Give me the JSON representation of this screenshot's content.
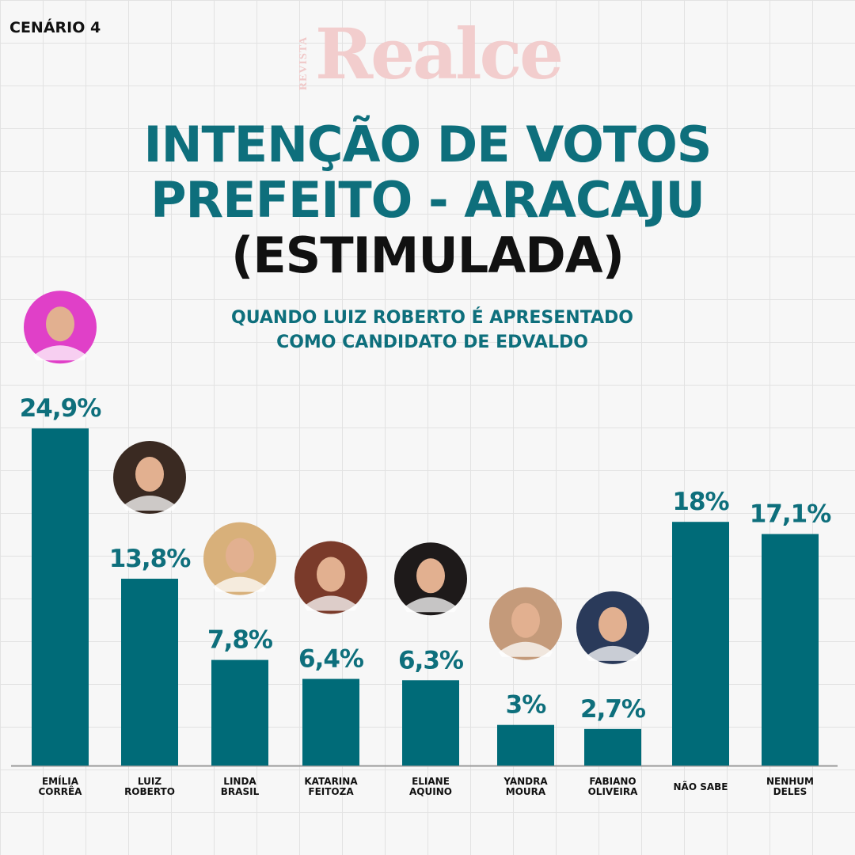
{
  "scenario_label": "CENÁRIO 4",
  "brand": {
    "sub": "REVISTA",
    "name": "Realce"
  },
  "title": {
    "line1": "INTENÇÃO DE VOTOS",
    "line2": "PREFEITO - ARACAJU",
    "line3": "(ESTIMULADA)"
  },
  "subtitle": {
    "line1": "QUANDO LUIZ ROBERTO É APRESENTADO",
    "line2": "COMO CANDIDATO DE EDVALDO"
  },
  "colors": {
    "bar": "#006b78",
    "accent": "#0e6f7c",
    "axis": "#999999"
  },
  "chart_data": {
    "type": "bar",
    "title": "INTENÇÃO DE VOTOS PREFEITO - ARACAJU (ESTIMULADA)",
    "xlabel": "",
    "ylabel": "",
    "unit": "%",
    "ylim": [
      0,
      25
    ],
    "categories": [
      [
        "EMÍLIA",
        "CORRÊA"
      ],
      [
        "LUIZ",
        "ROBERTO"
      ],
      [
        "LINDA",
        "BRASIL"
      ],
      [
        "KATARINA",
        "FEITOZA"
      ],
      [
        "ELIANE",
        "AQUINO"
      ],
      [
        "YANDRA",
        "MOURA"
      ],
      [
        "FABIANO",
        "OLIVEIRA"
      ],
      [
        "NÃO SABE"
      ],
      [
        "NENHUM",
        "DELES"
      ]
    ],
    "values": [
      24.9,
      13.8,
      7.8,
      6.4,
      6.3,
      3,
      2.7,
      18,
      17.1
    ],
    "labels": [
      "24,9%",
      "13,8%",
      "7,8%",
      "6,4%",
      "6,3%",
      "3%",
      "2,7%",
      "18%",
      "17,1%"
    ]
  }
}
